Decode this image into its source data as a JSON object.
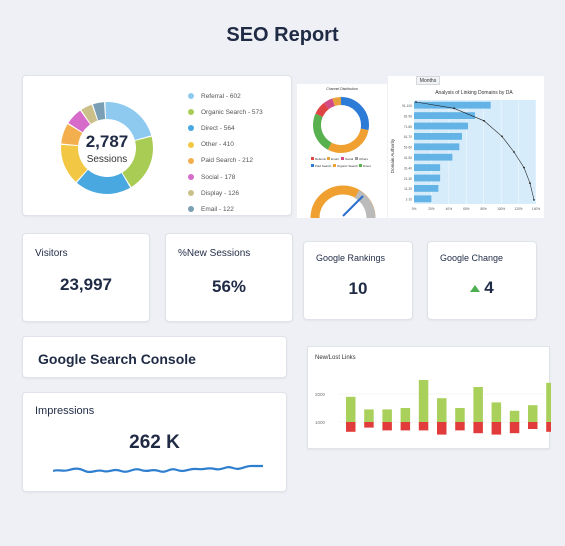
{
  "page": {
    "title": "SEO Report"
  },
  "sessions_widget": {
    "total": "2,787",
    "label": "Sessions",
    "legend": [
      {
        "label": "Referral - 602",
        "color": "#8ecaf0"
      },
      {
        "label": "Organic Search - 573",
        "color": "#a9cc55"
      },
      {
        "label": "Direct - 564",
        "color": "#4aa8e0"
      },
      {
        "label": "Other - 410",
        "color": "#f2c744"
      },
      {
        "label": "Paid Search - 212",
        "color": "#f3ae4e"
      },
      {
        "label": "Social - 178",
        "color": "#d66bc9"
      },
      {
        "label": "Display - 126",
        "color": "#cbbf8a"
      },
      {
        "label": "Email - 122",
        "color": "#7a9fb5"
      }
    ]
  },
  "channel_distribution": {
    "title": "Channel Distribution",
    "legend": [
      {
        "label": "Referral",
        "color": "#e04545"
      },
      {
        "label": "Email",
        "color": "#e8a23c"
      },
      {
        "label": "Social",
        "color": "#d24a86"
      },
      {
        "label": "Others",
        "color": "#9b9b9b"
      },
      {
        "label": "Paid Search",
        "color": "#2c7bd6"
      },
      {
        "label": "Organic Search",
        "color": "#f0a030"
      },
      {
        "label": "Direct",
        "color": "#58b04e"
      }
    ]
  },
  "linking_domains": {
    "tab": "Months",
    "title": "Analysis of Linking Domains by DA",
    "ylabel": "Domain Authority",
    "categories": [
      "91-100",
      "81-90",
      "71-80",
      "61-70",
      "51-60",
      "41-50",
      "31-40",
      "21-30",
      "11-20",
      "1-10"
    ],
    "values": [
      88,
      70,
      62,
      55,
      52,
      44,
      30,
      30,
      28,
      20
    ],
    "xticks": [
      "0%",
      "20%",
      "40%",
      "60%",
      "80%",
      "100%",
      "120%",
      "140%"
    ]
  },
  "kpis": {
    "visitors": {
      "label": "Visitors",
      "value": "23,997"
    },
    "new_sessions": {
      "label": "%New Sessions",
      "value": "56%"
    },
    "google_rankings": {
      "label": "Google Rankings",
      "value": "10"
    },
    "google_change": {
      "label": "Google Change",
      "value": "4",
      "trend": "up"
    }
  },
  "search_console": {
    "title": "Google Search Console"
  },
  "impressions": {
    "label": "Impressions",
    "value": "262 K"
  },
  "new_lost_links": {
    "title": "New/Lost Links",
    "yticks": [
      "2000",
      "1000"
    ],
    "chart_data": {
      "type": "bar",
      "series": [
        {
          "values": [
            900,
            450,
            450,
            500,
            1500,
            850,
            500,
            1250,
            700,
            400,
            600,
            1400
          ]
        },
        {
          "values": [
            -350,
            -200,
            -300,
            -300,
            -300,
            -450,
            -300,
            -400,
            -450,
            -400,
            -250,
            -350
          ]
        }
      ]
    }
  },
  "colors": {
    "new_links": "#a8d05b",
    "lost_links": "#e23b3b",
    "bar_blue": "#63b3e6",
    "text": "#1f2a44"
  }
}
